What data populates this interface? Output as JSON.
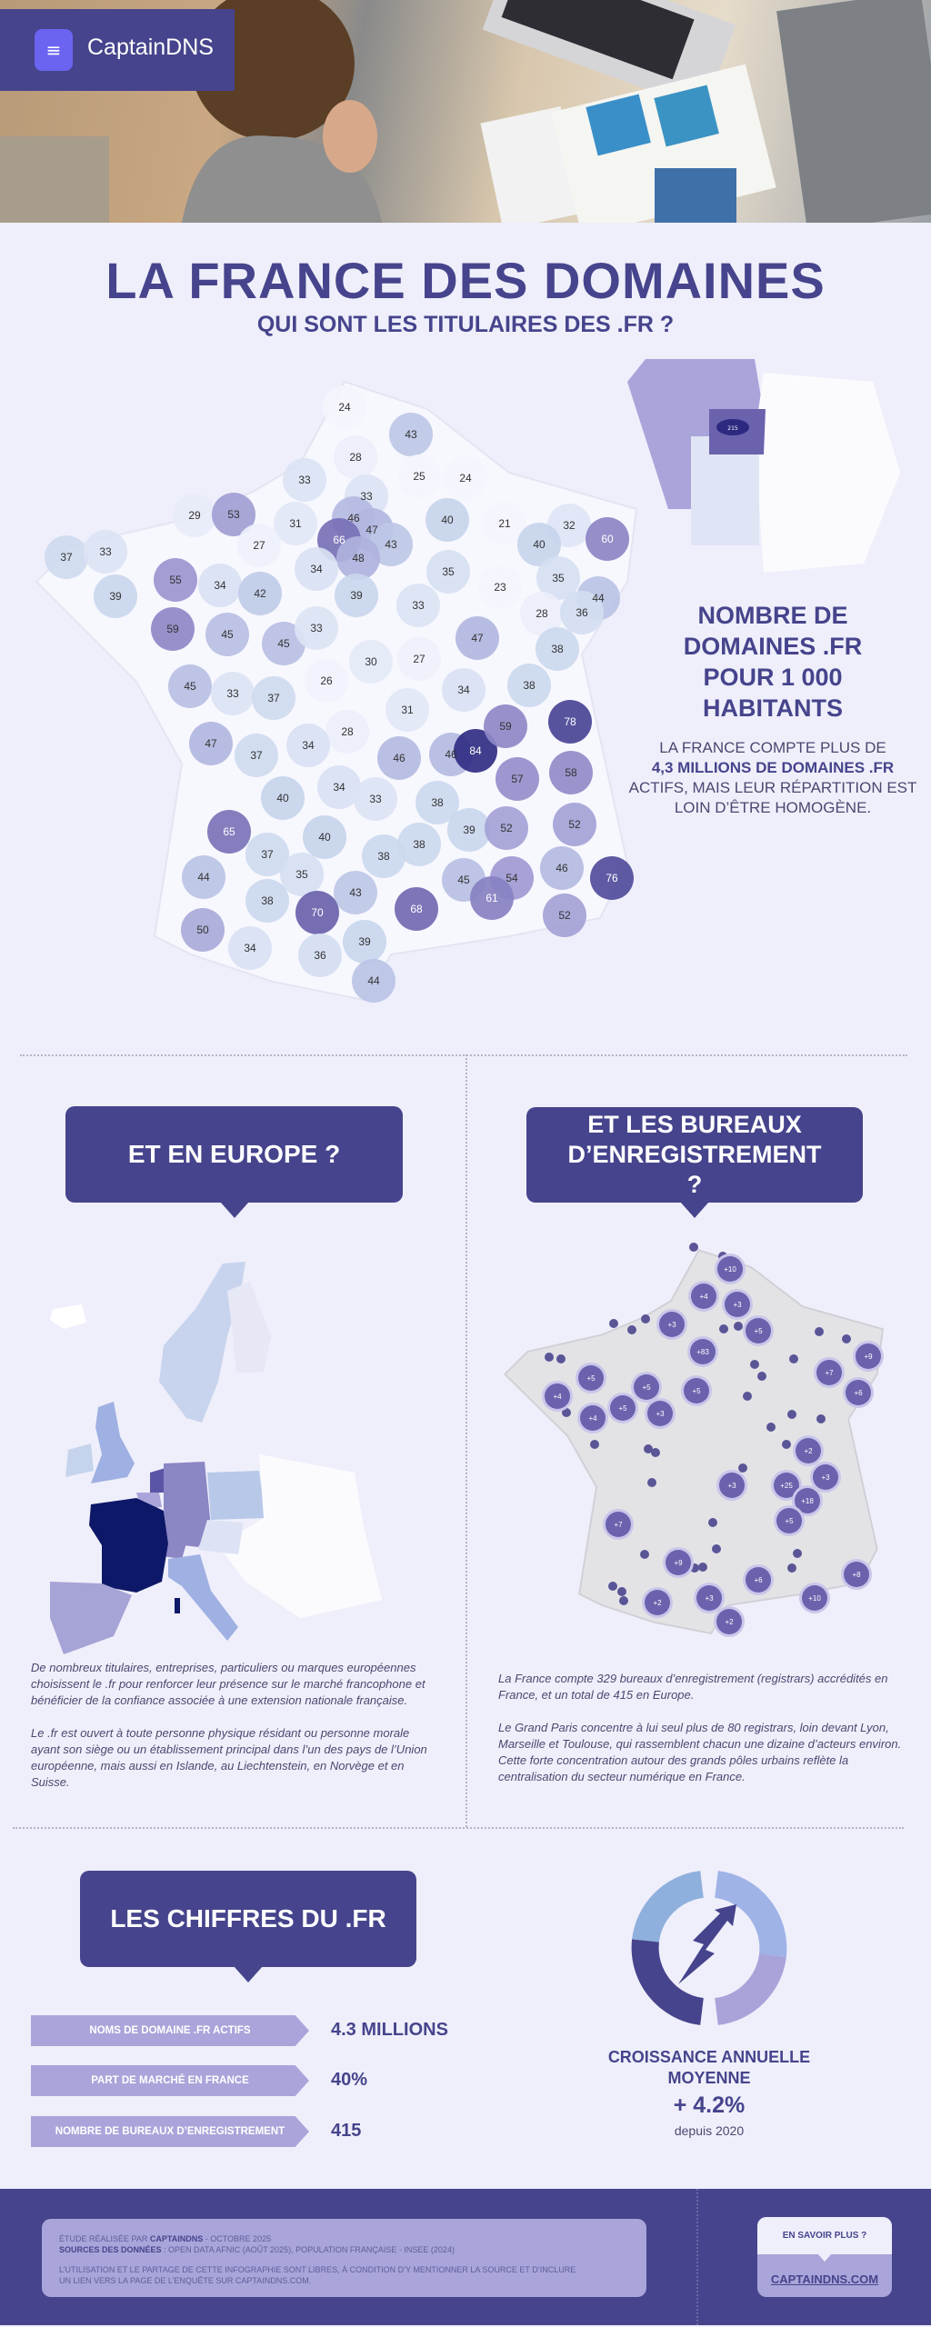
{
  "header": {
    "brand": "CaptainDNS",
    "logo_icon": "filter-lines-icon"
  },
  "title": "LA FRANCE DES DOMAINES",
  "subtitle": "QUI SONT LES TITULAIRES DES .FR ?",
  "france_map": {
    "metric": "domains .fr per 1000 inhabitants",
    "departments": [
      24,
      43,
      28,
      33,
      25,
      24,
      33,
      29,
      53,
      31,
      46,
      47,
      66,
      43,
      40,
      21,
      32,
      60,
      40,
      37,
      33,
      27,
      48,
      34,
      35,
      35,
      55,
      34,
      42,
      39,
      39,
      33,
      23,
      44,
      28,
      36,
      59,
      45,
      45,
      33,
      47,
      38,
      30,
      27,
      26,
      34,
      38,
      45,
      33,
      37,
      31,
      28,
      47,
      37,
      34,
      46,
      46,
      84,
      59,
      78,
      57,
      58,
      34,
      40,
      33,
      38,
      52,
      65,
      39,
      52,
      40,
      37,
      38,
      38,
      46,
      44,
      35,
      45,
      54,
      76,
      43,
      61,
      38,
      70,
      68,
      52,
      50,
      39,
      34,
      36,
      44
    ],
    "inset_paris_value": "215",
    "colors": {
      "low": "#f4f4fd",
      "mid": "#c5d4ec",
      "high": "#9b95d0",
      "very_high": "#2c2a80"
    }
  },
  "map_legend": {
    "heading": "NOMBRE DE DOMAINES .FR POUR 1 000 HABITANTS",
    "text_before": "LA FRANCE COMPTE PLUS DE",
    "text_bold": "4,3 MILLIONS DE DOMAINES .FR",
    "text_after": "ACTIFS, MAIS LEUR RÉPARTITION EST LOIN D’ÊTRE HOMOGÈNE."
  },
  "europe": {
    "heading": "ET EN EUROPE ?",
    "paragraphs": [
      "De nombreux titulaires, entreprises, particuliers ou marques européennes choisissent le .fr pour renforcer leur présence sur le marché francophone et bénéficier de la confiance associée à une extension nationale française.",
      "Le .fr est ouvert à toute personne physique résidant ou personne morale ayant son siège ou un établissement principal dans l’un des pays de l’Union européenne, mais aussi en Islande, au Liechtenstein, en Norvège et en Suisse."
    ]
  },
  "registrars": {
    "heading": "ET LES BUREAUX D’ENREGISTREMENT ?",
    "bubbles": [
      "+10",
      "+4",
      "+3",
      "+3",
      "+5",
      "+83",
      "+9",
      "+7",
      "+6",
      "+5",
      "+4",
      "+5",
      "+5",
      "+5",
      "+3",
      "+4",
      "+2",
      "+3",
      "+3",
      "+25",
      "+18",
      "+7",
      "+5",
      "+9",
      "+6",
      "+8",
      "+2",
      "+3",
      "+10",
      "+2"
    ],
    "paragraphs": [
      "La France compte 329 bureaux d’enregistrement (registrars) accrédités en France, et un total de 415 en Europe.",
      "Le Grand Paris concentre à lui seul plus de 80 registrars, loin devant Lyon, Marseille et Toulouse, qui rassemblent chacun une dizaine d’acteurs environ.",
      "Cette forte concentration autour des grands pôles urbains reflète la centralisation du secteur numérique en France."
    ]
  },
  "figures": {
    "heading": "LES CHIFFRES DU .FR",
    "stats": [
      {
        "label": "NOMS DE DOMAINE .FR ACTIFS",
        "value": "4.3 MILLIONS"
      },
      {
        "label": "PART DE MARCHÉ EN FRANCE",
        "value": "40%"
      },
      {
        "label": "NOMBRE DE BUREAUX D’ENREGISTREMENT",
        "value": "415"
      }
    ],
    "growth_label": "CROISSANCE ANNUELLE MOYENNE",
    "growth_value": "+ 4.2%",
    "growth_since": "depuis 2020",
    "growth_icon": "growth-cycle-arrow-icon"
  },
  "footer": {
    "study_prefix": "ÉTUDE RÉALISÉE PAR ",
    "study_author": "CAPTAINDNS",
    "study_suffix": " - OCTOBRE 2025",
    "sources_label": "SOURCES DES DONNÉES",
    "sources_text": " : OPEN DATA AFNIC (AOÛT 2025), POPULATION FRANÇAISE - INSEE (2024)",
    "license": "L’UTILISATION ET LE PARTAGE DE CETTE INFOGRAPHIE SONT LIBRES, À CONDITION D’Y MENTIONNER LA SOURCE ET D’INCLURE UN LIEN VERS LA PAGE DE L’ENQUÊTE SUR CAPTAINDNS.COM.",
    "cta_question": "EN SAVOIR PLUS ?",
    "cta_link": "CAPTAINDNS.COM"
  },
  "colors": {
    "primary": "#46448c",
    "accent": "#6a64f0",
    "light": "#a9a5da",
    "background": "#efeffb"
  }
}
